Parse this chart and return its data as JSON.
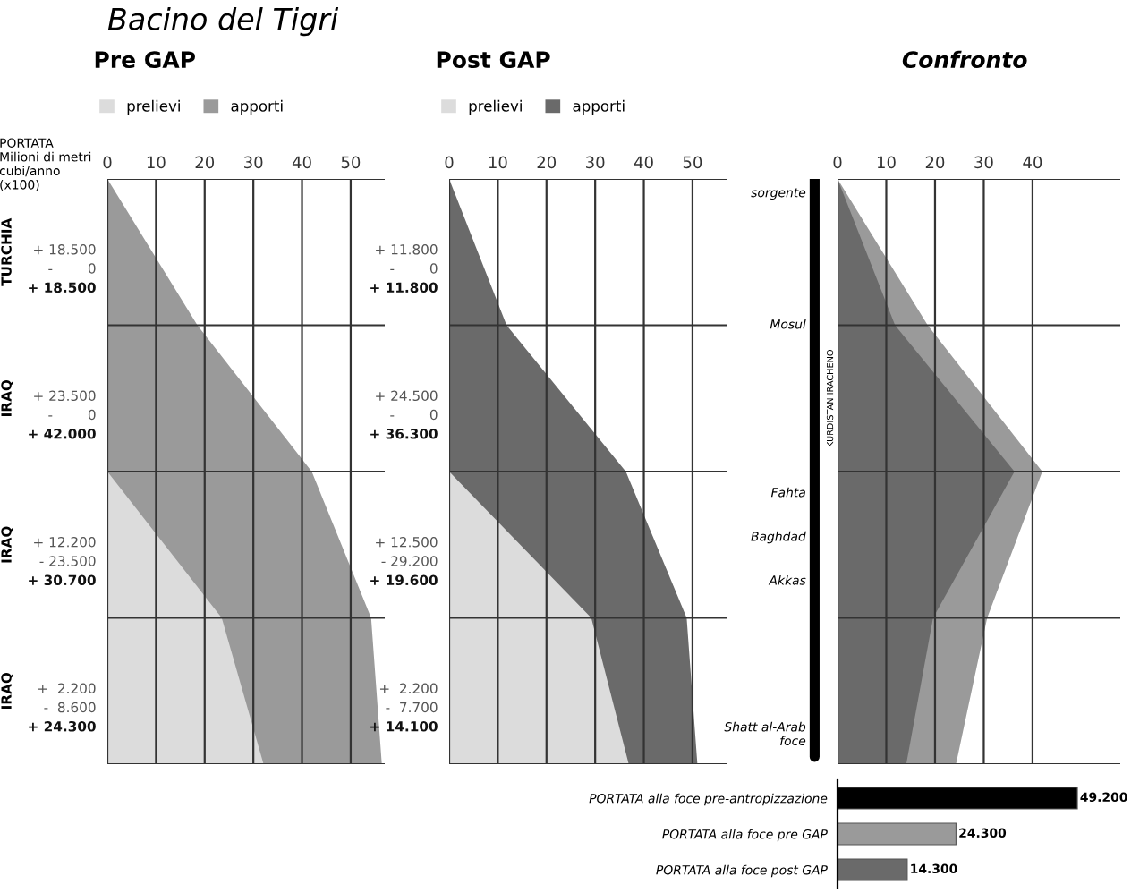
{
  "chart_data": [
    {
      "type": "other",
      "title": "Bacino del Tigri"
    },
    {
      "type": "area",
      "orientation": "horizontal",
      "title": "Pre GAP",
      "ylabel": "PORTATA\nMilioni di metri\ncubi/anno\n(x100)",
      "categories": [
        null,
        null,
        null,
        null,
        null
      ],
      "series": [
        {
          "name": "apporti",
          "color": "#9a9a9a",
          "values": [
            0,
            18.5,
            42,
            54.2,
            56.4
          ]
        },
        {
          "name": "prelievi",
          "color": "#dcdcdc",
          "values": [
            0,
            0,
            0,
            23.5,
            32.1
          ]
        }
      ],
      "xlim": [
        0,
        57
      ],
      "xticks": [
        0,
        10,
        20,
        30,
        40,
        50
      ],
      "grid": true,
      "legend": "top left",
      "annotations": [
        "TURCHIA",
        "IRAQ",
        "IRAQ",
        "IRAQ",
        "+ 18.500",
        "-        0",
        "+ 18.500",
        "+ 23.500",
        "-        0",
        "+ 42.000",
        "+ 12.200",
        "- 23.500",
        "+ 30.700",
        "+  2.200",
        "-  8.600",
        "+ 24.300"
      ]
    },
    {
      "type": "area",
      "orientation": "horizontal",
      "title": "Post GAP",
      "categories": [
        null,
        null,
        null,
        null,
        null
      ],
      "series": [
        {
          "name": "apporti",
          "color": "#6a6a6a",
          "values": [
            0,
            11.8,
            36.3,
            48.8,
            51.0
          ]
        },
        {
          "name": "prelievi",
          "color": "#dcdcdc",
          "values": [
            0,
            0,
            0,
            29.2,
            36.9
          ]
        }
      ],
      "xlim": [
        0,
        57
      ],
      "xticks": [
        0,
        10,
        20,
        30,
        40,
        50
      ],
      "grid": true,
      "legend": "top left",
      "annotations": [
        "+ 11.800",
        "-        0",
        "+ 11.800",
        "+ 24.500",
        "-        0",
        "+ 36.300",
        "+ 12.500",
        "- 29.200",
        "+ 19.600",
        "+  2.200",
        "-  7.700",
        "+ 14.100"
      ]
    },
    {
      "type": "other",
      "annotations": [
        "sorgente",
        "Mosul",
        "Fahta",
        "Baghdad",
        "Akkas",
        "Shatt al-Arab\nfoce",
        "KURDISTAN IRACHENO"
      ]
    },
    {
      "type": "area",
      "orientation": "horizontal",
      "title": "Confronto",
      "categories": [
        null,
        null,
        null,
        null,
        null
      ],
      "series": [
        {
          "color": "#9a9a9a",
          "values": [
            0,
            18.5,
            42,
            30.7,
            24.3
          ]
        },
        {
          "color": "#6a6a6a",
          "values": [
            0,
            11.8,
            36.3,
            19.6,
            14.1
          ]
        }
      ],
      "xlim": [
        0,
        58
      ],
      "xticks": [
        0,
        10,
        20,
        30,
        40
      ],
      "grid": true
    },
    {
      "type": "bar",
      "orientation": "horizontal",
      "categories": [
        "PORTATA alla foce pre-antropizzazione",
        "PORTATA alla foce pre GAP",
        "PORTATA alla foce post GAP"
      ],
      "values": [
        49.2,
        24.3,
        14.3
      ],
      "colors": [
        "#000000",
        "#9a9a9a",
        "#6a6a6a"
      ],
      "value_labels": [
        "49.200",
        "24.300",
        "14.300"
      ],
      "xlim": [
        0,
        58
      ],
      "tick_labels": "y"
    }
  ]
}
